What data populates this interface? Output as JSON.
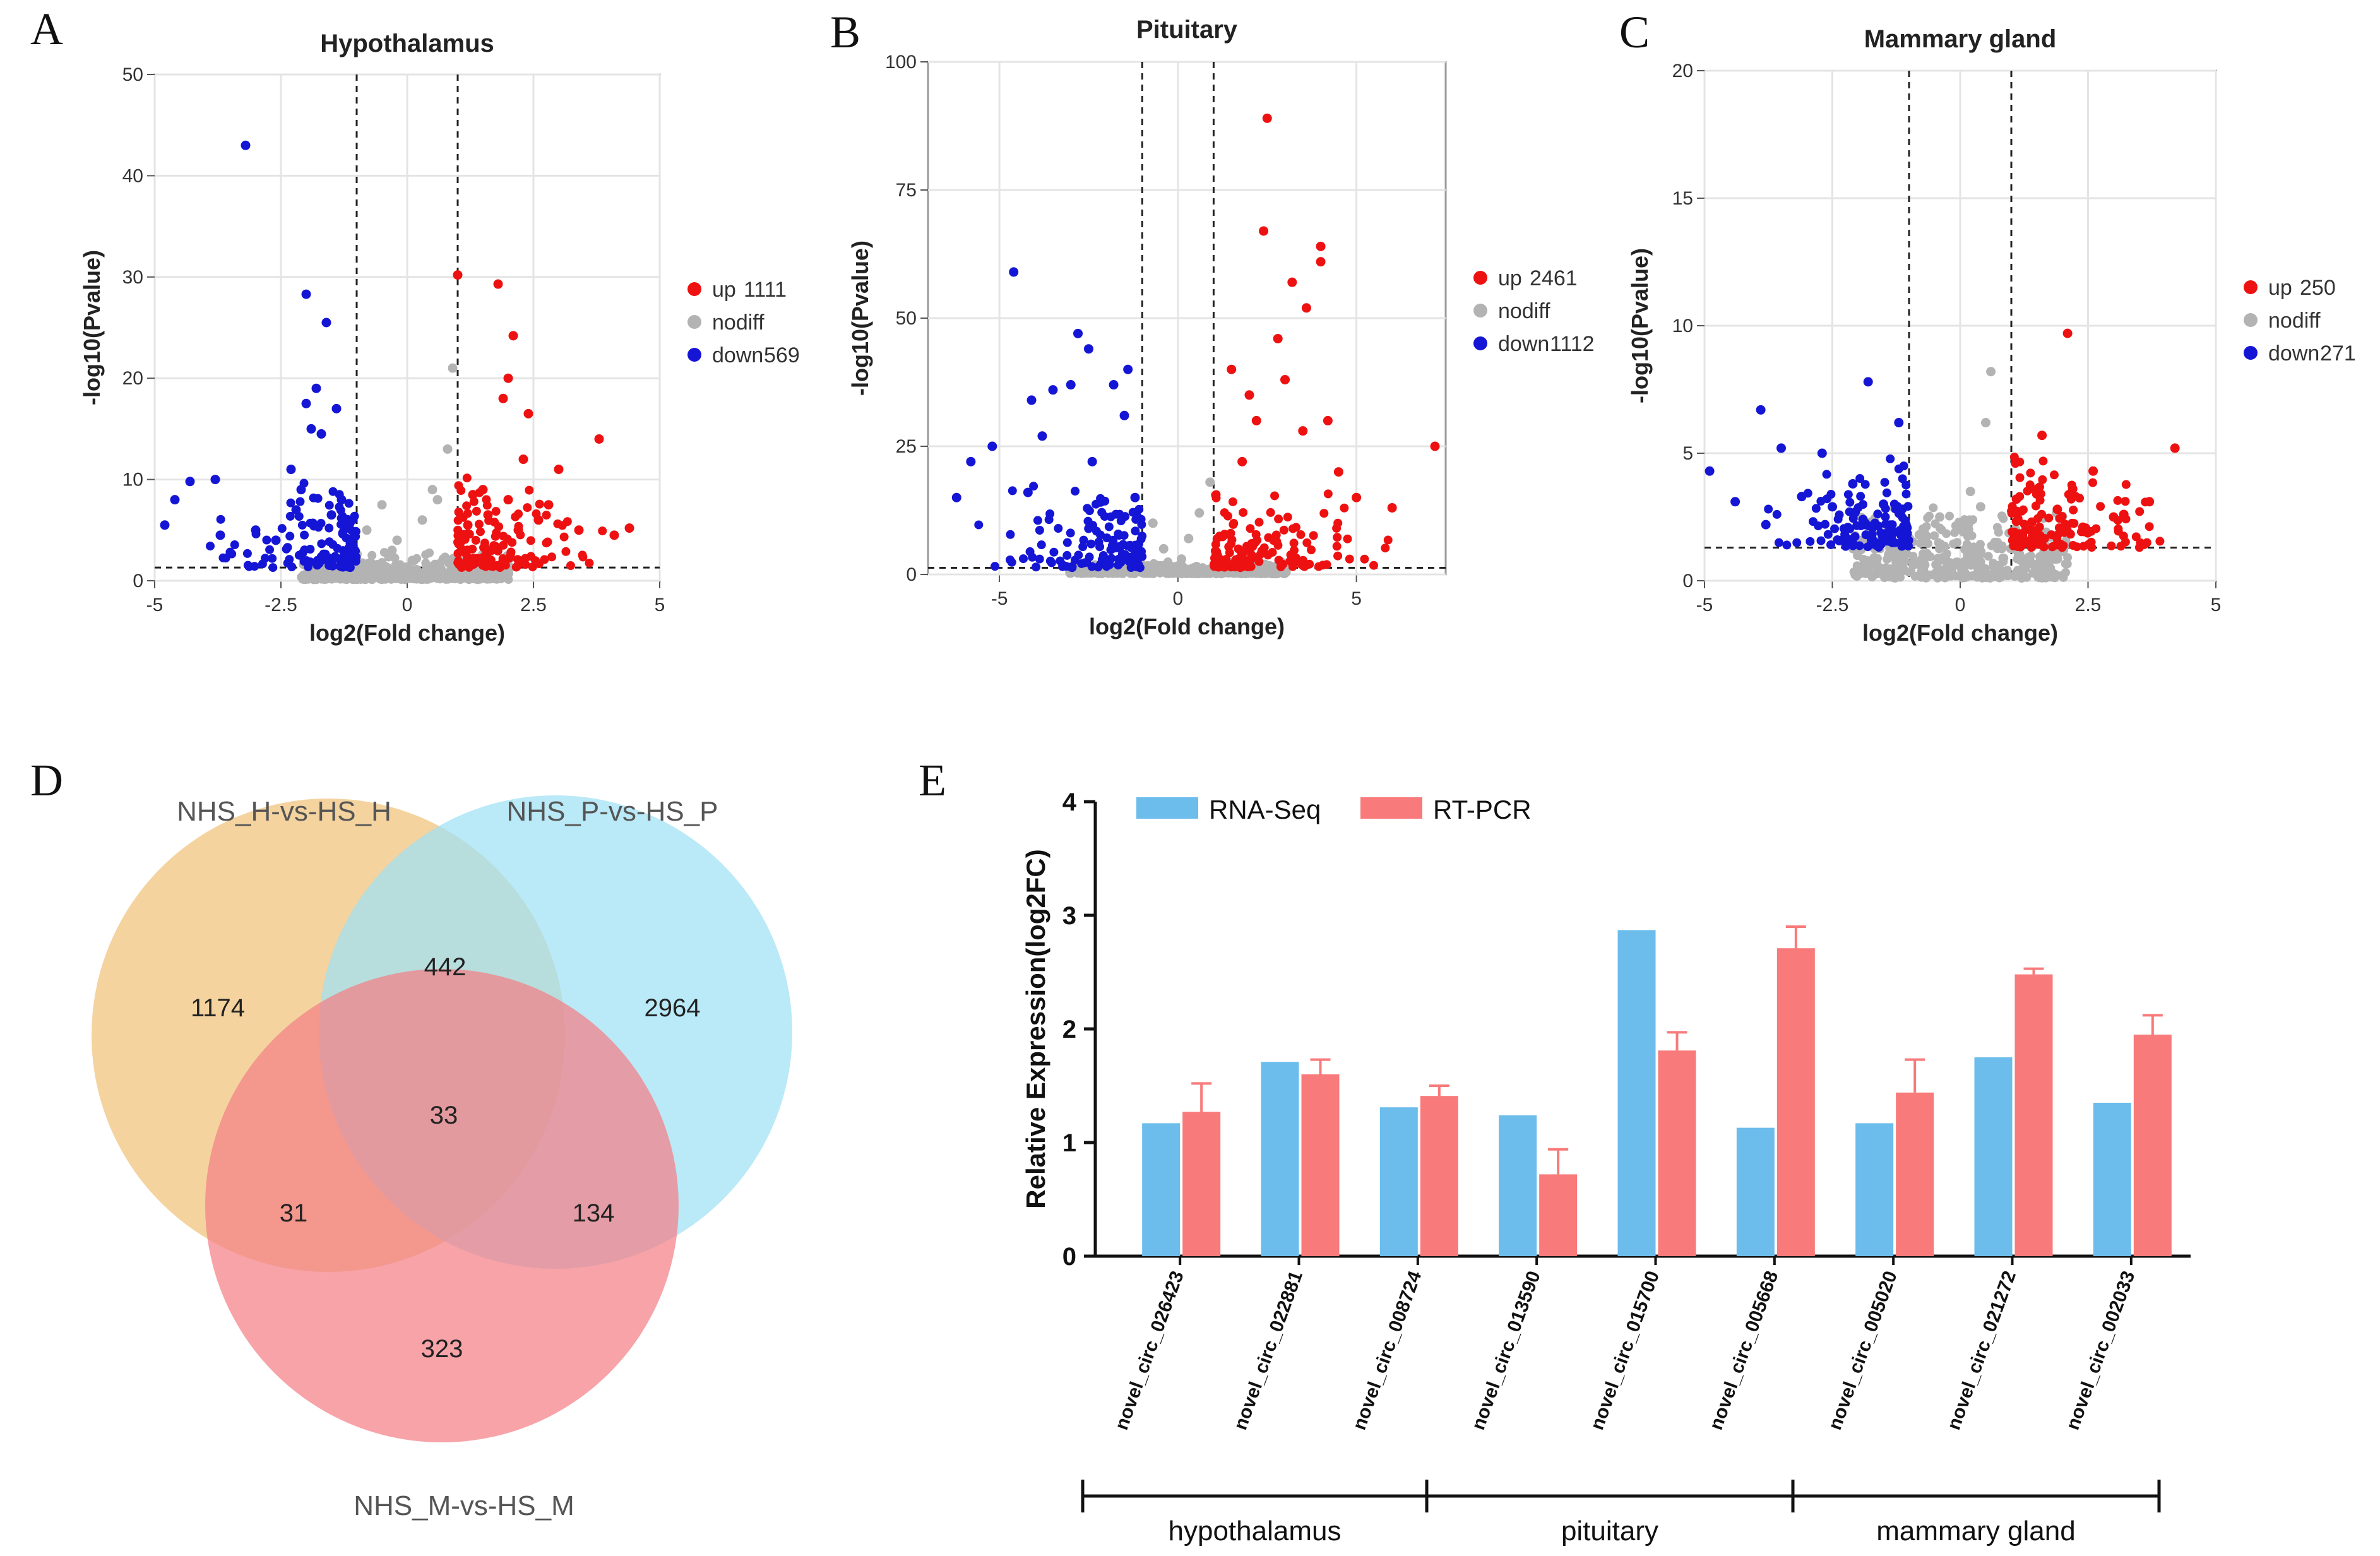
{
  "colors": {
    "up": "#ee1111",
    "nodiff": "#b3b3b3",
    "down": "#1515d6",
    "rnaseq": "#6cbcec",
    "rtpcr": "#f87a7a",
    "venn_h": "#f0c27a",
    "venn_p": "#9fe0f4",
    "venn_m": "#f47f86"
  },
  "panels": {
    "a": "A",
    "b": "B",
    "c": "C",
    "d": "D",
    "e": "E"
  },
  "chart_data": [
    {
      "type": "scatter",
      "title": "Hypothalamus",
      "xlabel": "log2(Fold change)",
      "ylabel": "-log10(Pvalue)",
      "xlim": [
        -5,
        5
      ],
      "ylim": [
        0,
        50
      ],
      "xticks": [
        "-5",
        "-2.5",
        "0",
        "2.5",
        "5"
      ],
      "yticks": [
        "0",
        "10",
        "20",
        "30",
        "40",
        "50"
      ],
      "thresholds": {
        "log2fc": 1,
        "neg_log10_p": 1.3
      },
      "legend": [
        {
          "label": "up",
          "count": "1111"
        },
        {
          "label": "nodiff",
          "count": ""
        },
        {
          "label": "down",
          "count": "569"
        }
      ],
      "series": [
        {
          "name": "up",
          "points": [
            [
              1,
              30.2
            ],
            [
              1.8,
              29.3
            ],
            [
              2.1,
              24.2
            ],
            [
              2,
              20
            ],
            [
              1.9,
              18
            ],
            [
              2.4,
              16.5
            ],
            [
              3.8,
              14
            ],
            [
              2.3,
              12
            ],
            [
              3,
              11
            ],
            [
              1.5,
              9
            ],
            [
              2,
              8
            ],
            [
              2.8,
              7.5
            ],
            [
              4.4,
              5.2
            ],
            [
              4.1,
              4.5
            ],
            [
              1.3,
              8.5
            ],
            [
              1.6,
              6.5
            ],
            [
              2.6,
              6
            ],
            [
              3.4,
              5
            ],
            [
              1.2,
              5.5
            ],
            [
              2.2,
              5
            ]
          ]
        },
        {
          "name": "down",
          "points": [
            [
              -3.2,
              43
            ],
            [
              -2,
              28.3
            ],
            [
              -1.6,
              25.5
            ],
            [
              -1.8,
              19
            ],
            [
              -2,
              17.5
            ],
            [
              -1.4,
              17
            ],
            [
              -1.7,
              14.5
            ],
            [
              -1.9,
              15
            ],
            [
              -2.3,
              11
            ],
            [
              -4.3,
              9.8
            ],
            [
              -3.8,
              10
            ],
            [
              -4.6,
              8
            ],
            [
              -2.1,
              9
            ],
            [
              -1.3,
              8
            ],
            [
              -4.8,
              5.5
            ],
            [
              -3.7,
              4.5
            ],
            [
              -3,
              5
            ],
            [
              -2.6,
              4
            ],
            [
              -1.5,
              6.5
            ],
            [
              -2.2,
              7
            ]
          ]
        },
        {
          "name": "nodiff",
          "points": [
            [
              0.8,
              13
            ],
            [
              0.9,
              21
            ],
            [
              0.5,
              9
            ],
            [
              -0.5,
              7.5
            ],
            [
              0.3,
              6
            ],
            [
              -0.8,
              5
            ],
            [
              0.6,
              8
            ],
            [
              -0.3,
              3
            ],
            [
              0.1,
              2
            ],
            [
              -0.2,
              4
            ]
          ]
        }
      ]
    },
    {
      "type": "scatter",
      "title": "Pituitary",
      "xlabel": "log2(Fold change)",
      "ylabel": "-log10(Pvalue)",
      "xlim": [
        -7,
        7.5
      ],
      "ylim": [
        0,
        100
      ],
      "xticks": [
        "-5",
        "0",
        "5"
      ],
      "yticks": [
        "0",
        "25",
        "50",
        "75",
        "100"
      ],
      "thresholds": {
        "log2fc": 1,
        "neg_log10_p": 1.3
      },
      "legend": [
        {
          "label": "up",
          "count": "2461"
        },
        {
          "label": "nodiff",
          "count": ""
        },
        {
          "label": "down",
          "count": "1112"
        }
      ],
      "series": [
        {
          "name": "up",
          "points": [
            [
              2.5,
              89
            ],
            [
              2.4,
              67
            ],
            [
              3.2,
              57
            ],
            [
              4,
              64
            ],
            [
              4,
              61
            ],
            [
              3.6,
              52
            ],
            [
              2.8,
              46
            ],
            [
              7.2,
              25
            ],
            [
              1.5,
              40
            ],
            [
              2,
              35
            ],
            [
              3,
              38
            ],
            [
              4.5,
              20
            ],
            [
              5,
              15
            ],
            [
              6,
              13
            ],
            [
              2.2,
              30
            ],
            [
              3.5,
              28
            ],
            [
              1.8,
              22
            ],
            [
              4.2,
              30
            ]
          ]
        },
        {
          "name": "down",
          "points": [
            [
              -4.6,
              59
            ],
            [
              -2.8,
              47
            ],
            [
              -2.5,
              44
            ],
            [
              -1.4,
              40
            ],
            [
              -3,
              37
            ],
            [
              -3.5,
              36
            ],
            [
              -1.8,
              37
            ],
            [
              -4.1,
              34
            ],
            [
              -1.5,
              31
            ],
            [
              -5.2,
              25
            ],
            [
              -5.8,
              22
            ],
            [
              -3.8,
              27
            ],
            [
              -2.4,
              22
            ],
            [
              -4.2,
              16
            ],
            [
              -1.2,
              15
            ],
            [
              -6.2,
              15
            ]
          ]
        },
        {
          "name": "nodiff",
          "points": [
            [
              0.6,
              12
            ],
            [
              0.9,
              18
            ],
            [
              -0.4,
              5
            ],
            [
              0.3,
              7
            ],
            [
              -0.7,
              10
            ],
            [
              0.1,
              3
            ]
          ]
        }
      ]
    },
    {
      "type": "scatter",
      "title": "Mammary gland",
      "xlabel": "log2(Fold change)",
      "ylabel": "-log10(Pvalue)",
      "xlim": [
        -5,
        5
      ],
      "ylim": [
        0,
        20
      ],
      "xticks": [
        "-5",
        "-2.5",
        "0",
        "2.5",
        "5"
      ],
      "yticks": [
        "0",
        "5",
        "10",
        "15",
        "20"
      ],
      "thresholds": {
        "log2fc": 1,
        "neg_log10_p": 1.3
      },
      "legend": [
        {
          "label": "up",
          "count": "250"
        },
        {
          "label": "nodiff",
          "count": ""
        },
        {
          "label": "down",
          "count": "271"
        }
      ],
      "series": [
        {
          "name": "up",
          "points": [
            [
              2.1,
              9.7
            ],
            [
              4.2,
              5.2
            ],
            [
              1.6,
              5.7
            ],
            [
              2.6,
              4.3
            ],
            [
              3.7,
              3.1
            ],
            [
              1.1,
              3.2
            ],
            [
              2.2,
              3.6
            ],
            [
              3.2,
              2.6
            ],
            [
              2.4,
              2.1
            ],
            [
              1.4,
              2.3
            ],
            [
              3,
              2.5
            ],
            [
              1.9,
              2.8
            ]
          ]
        },
        {
          "name": "down",
          "points": [
            [
              -1.8,
              7.8
            ],
            [
              -3.9,
              6.7
            ],
            [
              -3.5,
              5.2
            ],
            [
              -2.7,
              5
            ],
            [
              -4.9,
              4.3
            ],
            [
              -1.2,
              6.2
            ],
            [
              -2.1,
              3.8
            ],
            [
              -3.1,
              3.3
            ],
            [
              -4.4,
              3.1
            ],
            [
              -1.5,
              3
            ],
            [
              -2.5,
              2.9
            ],
            [
              -3.8,
              2.2
            ],
            [
              -1.9,
              2.4
            ]
          ]
        },
        {
          "name": "nodiff",
          "points": [
            [
              0.6,
              8.2
            ],
            [
              0.5,
              6.2
            ],
            [
              0.2,
              3.5
            ],
            [
              -0.4,
              2.5
            ],
            [
              0.4,
              2.9
            ],
            [
              -0.8,
              1.8
            ]
          ]
        }
      ]
    },
    {
      "type": "venn",
      "sets": [
        "NHS_H-vs-HS_H",
        "NHS_P-vs-HS_P",
        "NHS_M-vs-HS_M"
      ],
      "regions": {
        "H_only": "1174",
        "P_only": "2964",
        "M_only": "323",
        "H_P": "442",
        "H_M": "31",
        "P_M": "134",
        "H_P_M": "33"
      }
    },
    {
      "type": "bar",
      "ylabel": "Relative Expression(log2FC)",
      "ylim": [
        0,
        4
      ],
      "yticks": [
        "0",
        "1",
        "2",
        "3",
        "4"
      ],
      "categories": [
        "novel_circ_026423",
        "novel_circ_022881",
        "novel_circ_008724",
        "novel_circ_013590",
        "novel_circ_015700",
        "novel_circ_005668",
        "novel_circ_005020",
        "novel_circ_021272",
        "novel_circ_002033"
      ],
      "groups": [
        "hypothalamus",
        "pituitary",
        "mammary gland"
      ],
      "series": [
        {
          "name": "RNA-Seq",
          "values": [
            1.17,
            1.71,
            1.31,
            1.24,
            2.87,
            1.13,
            1.17,
            1.75,
            1.35
          ]
        },
        {
          "name": "RT-PCR",
          "values": [
            1.27,
            1.6,
            1.41,
            0.72,
            1.81,
            2.71,
            1.44,
            2.48,
            1.95
          ],
          "errors": [
            0.25,
            0.13,
            0.09,
            0.22,
            0.16,
            0.19,
            0.29,
            0.05,
            0.17
          ]
        }
      ]
    }
  ]
}
